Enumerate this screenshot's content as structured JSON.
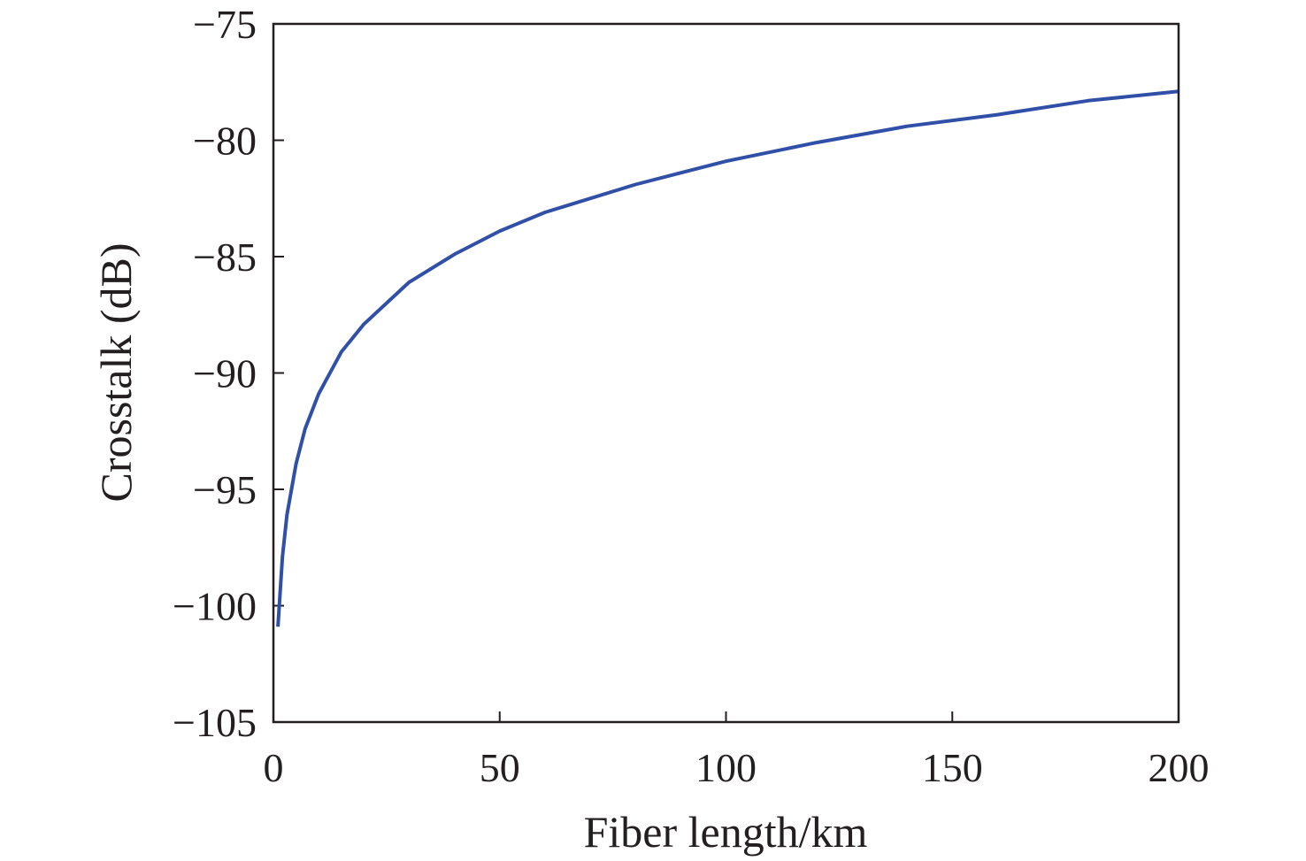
{
  "chart_data": {
    "type": "line",
    "xlabel": "Fiber length/km",
    "ylabel": "Crosstalk (dB)",
    "xlim": [
      0,
      200
    ],
    "ylim": [
      -105,
      -75
    ],
    "xticks": [
      "0",
      "50",
      "100",
      "150",
      "200"
    ],
    "yticks": [
      "−105",
      "−100",
      "−95",
      "−90",
      "−85",
      "−80",
      "−75"
    ],
    "grid": false,
    "line_color": "#3050a8",
    "series": [
      {
        "x": [
          1,
          2,
          3,
          5,
          7,
          10,
          15,
          20,
          30,
          40,
          50,
          60,
          80,
          100,
          120,
          140,
          160,
          180,
          200
        ],
        "y": [
          -100.9,
          -97.9,
          -96.1,
          -93.9,
          -92.4,
          -90.9,
          -89.1,
          -87.9,
          -86.1,
          -84.9,
          -83.9,
          -83.1,
          -81.9,
          -80.9,
          -80.1,
          -79.4,
          -78.9,
          -78.3,
          -77.9
        ]
      }
    ]
  }
}
